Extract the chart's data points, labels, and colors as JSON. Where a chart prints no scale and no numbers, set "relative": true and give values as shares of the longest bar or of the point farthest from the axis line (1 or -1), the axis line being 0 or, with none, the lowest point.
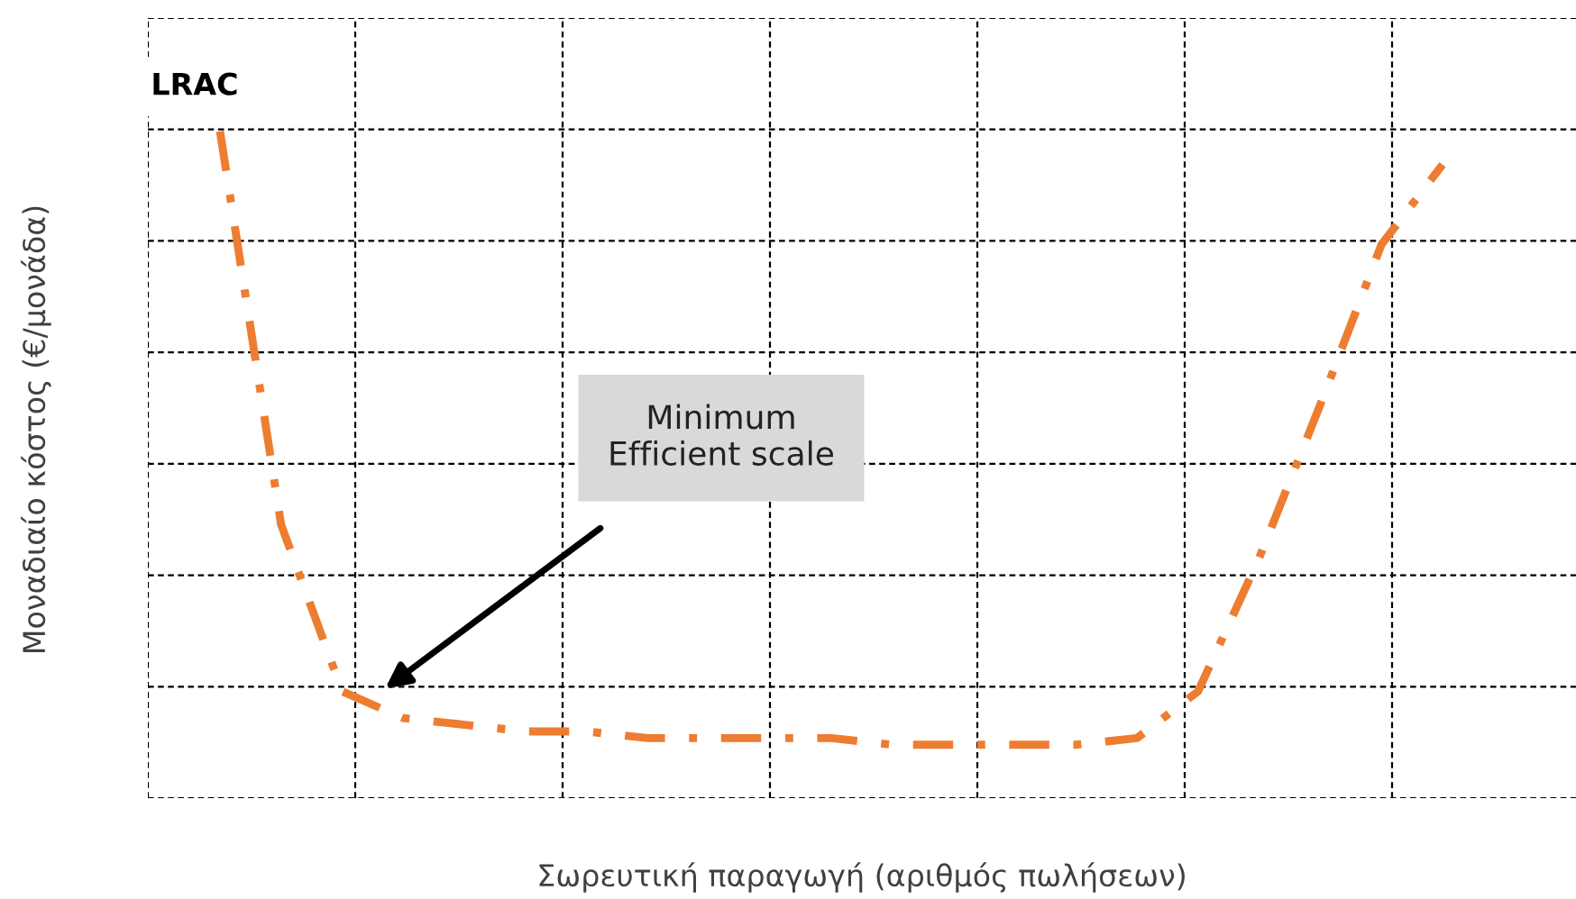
{
  "chart_data": {
    "type": "line",
    "relative": true,
    "xlabel": "Σωρευτική παραγωγή (αριθμός πωλήσεων)",
    "ylabel": "Μοναδιαίο κόστος (€/μονάδα)",
    "categories": [
      null,
      null,
      null,
      null,
      null,
      null,
      null,
      null,
      null,
      null,
      null,
      null,
      null,
      null,
      null,
      null,
      null,
      null,
      null,
      null,
      null
    ],
    "series": [
      {
        "name": "LRAC",
        "color": "#ed7d31",
        "values": [
          1.0,
          0.41,
          0.16,
          0.12,
          0.11,
          0.1,
          0.1,
          0.09,
          0.09,
          0.09,
          0.09,
          0.08,
          0.08,
          0.08,
          0.08,
          0.09,
          0.16,
          0.36,
          0.59,
          0.83,
          0.95
        ]
      }
    ],
    "annotations": [
      "Minimum\nEfficient scale"
    ],
    "grid": true,
    "tick_labels": false,
    "line_style": "dashed",
    "marker": "none",
    "legend": false
  }
}
